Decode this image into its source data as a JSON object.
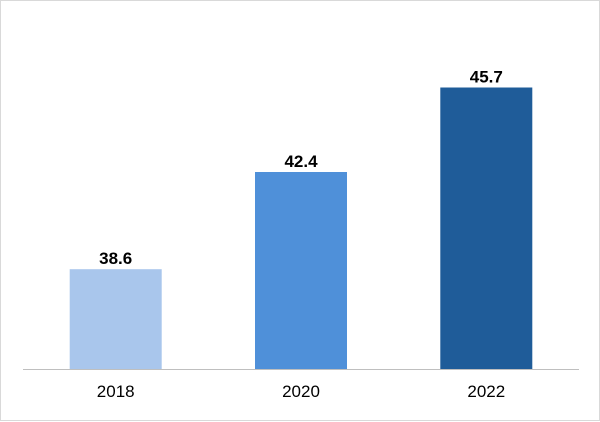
{
  "chart_data": {
    "type": "bar",
    "categories": [
      "2018",
      "2020",
      "2022"
    ],
    "values": [
      38.6,
      42.4,
      45.7
    ],
    "data_labels": [
      "38.6",
      "42.4",
      "45.7"
    ],
    "colors": [
      "#a9c6ec",
      "#4f90d9",
      "#1f5c99"
    ],
    "ylim": [
      34.7,
      48.3
    ],
    "grid": false,
    "legend": "none",
    "y_axis_visible": false,
    "baseline_color": "#bfbfbf"
  }
}
